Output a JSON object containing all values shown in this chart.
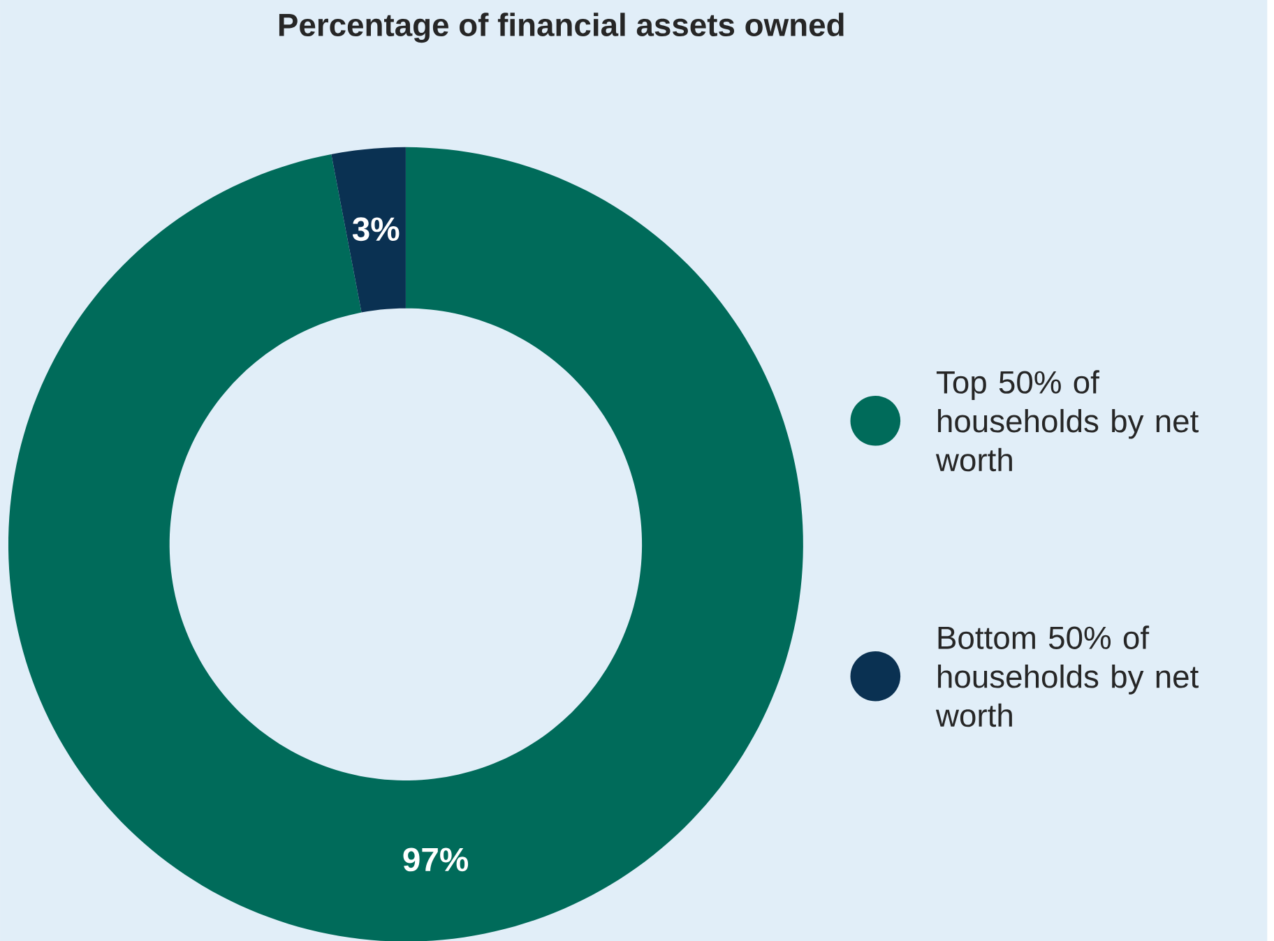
{
  "chart_data": {
    "type": "donut",
    "title": "Percentage of financial assets owned",
    "categories": [
      "Top 50% of households by net worth",
      "Bottom 50% of households by net worth"
    ],
    "values": [
      97,
      3
    ],
    "colors": [
      "#006b5a",
      "#0a3152"
    ],
    "value_labels": [
      "97%",
      "3%"
    ],
    "legend": "right"
  }
}
